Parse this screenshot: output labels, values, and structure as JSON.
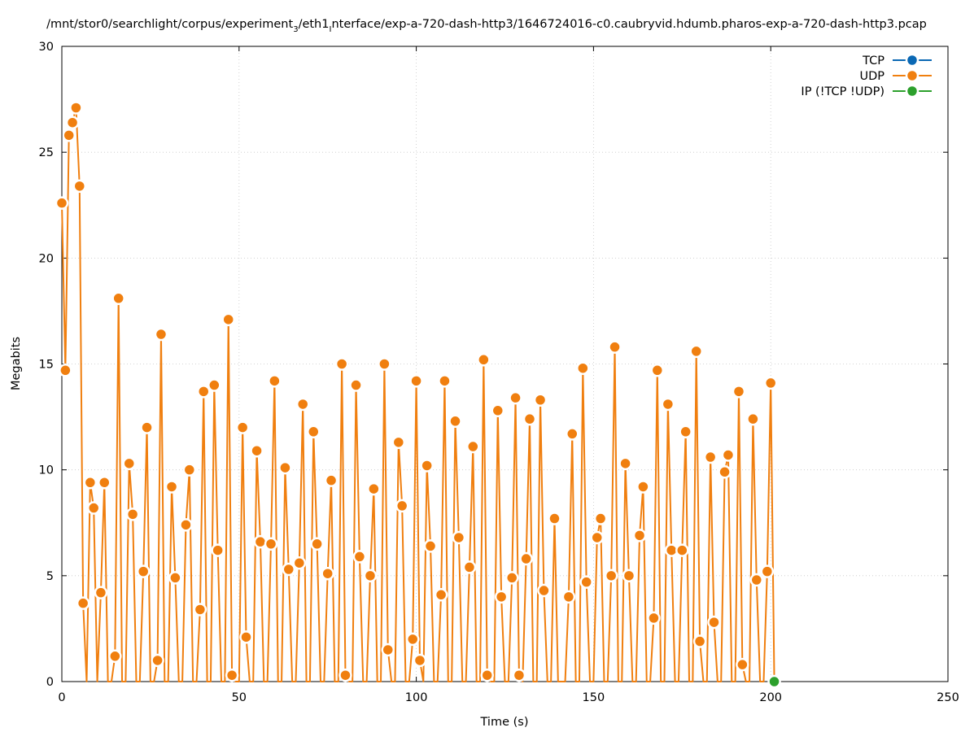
{
  "chart_data": {
    "type": "line",
    "title": "/mnt/stor0/searchlight/corpus/experiment",
    "title_sub": "3",
    "title_mid": "/eth1",
    "title_sub2": "I",
    "title_rest": "nterface/exp-a-720-dash-http3/1646724016-c0.caubryvid.hdumb.pharos-exp-a-720-dash-http3.pcap",
    "xlabel": "Time (s)",
    "ylabel": "Megabits",
    "xlim": [
      0,
      250
    ],
    "ylim": [
      0,
      30
    ],
    "xticks": [
      0,
      50,
      100,
      150,
      200,
      250
    ],
    "yticks": [
      0,
      5,
      10,
      15,
      20,
      25,
      30
    ],
    "grid": true,
    "legend_position": "top-right",
    "series": [
      {
        "name": "TCP",
        "color": "#0a68b4",
        "x": [],
        "y": []
      },
      {
        "name": "UDP",
        "color": "#f07f0f",
        "x": [
          0,
          1,
          2,
          3,
          4,
          5,
          6,
          7,
          8,
          9,
          10,
          11,
          12,
          13,
          14,
          15,
          16,
          17,
          18,
          19,
          20,
          21,
          22,
          23,
          24,
          25,
          26,
          27,
          28,
          29,
          30,
          31,
          32,
          33,
          34,
          35,
          36,
          37,
          38,
          39,
          40,
          41,
          42,
          43,
          44,
          45,
          46,
          47,
          48,
          49,
          50,
          51,
          52,
          53,
          54,
          55,
          56,
          57,
          58,
          59,
          60,
          61,
          62,
          63,
          64,
          65,
          66,
          67,
          68,
          69,
          70,
          71,
          72,
          73,
          74,
          75,
          76,
          77,
          78,
          79,
          80,
          81,
          82,
          83,
          84,
          85,
          86,
          87,
          88,
          89,
          90,
          91,
          92,
          93,
          94,
          95,
          96,
          97,
          98,
          99,
          100,
          101,
          102,
          103,
          104,
          105,
          106,
          107,
          108,
          109,
          110,
          111,
          112,
          113,
          114,
          115,
          116,
          117,
          118,
          119,
          120,
          121,
          122,
          123,
          124,
          125,
          126,
          127,
          128,
          129,
          130,
          131,
          132,
          133,
          134,
          135,
          136,
          137,
          138,
          139,
          140,
          141,
          142,
          143,
          144,
          145,
          146,
          147,
          148,
          149,
          150,
          151,
          152,
          153,
          154,
          155,
          156,
          157,
          158,
          159,
          160,
          161,
          162,
          163,
          164,
          165,
          166,
          167,
          168,
          169,
          170,
          171,
          172,
          173,
          174,
          175,
          176,
          177,
          178,
          179,
          180,
          181,
          182,
          183,
          184,
          185,
          186,
          187,
          188,
          189,
          190,
          191,
          192,
          193,
          194,
          195,
          196,
          197,
          198,
          199,
          200,
          201
        ],
        "y": [
          22.6,
          14.7,
          25.8,
          26.4,
          27.1,
          23.4,
          3.7,
          0.0,
          9.4,
          8.2,
          0.0,
          4.2,
          9.4,
          0.0,
          0.0,
          1.2,
          18.1,
          0.0,
          0.0,
          10.3,
          7.9,
          0.0,
          0.0,
          5.2,
          12.0,
          0.0,
          0.0,
          1.0,
          16.4,
          0.0,
          0.0,
          9.2,
          4.9,
          0.0,
          0.0,
          7.4,
          10.0,
          0.0,
          0.0,
          3.4,
          13.7,
          0.0,
          0.0,
          14.0,
          6.2,
          0.0,
          0.0,
          17.1,
          0.3,
          0.0,
          0.0,
          12.0,
          2.1,
          0.0,
          0.0,
          10.9,
          6.6,
          0.0,
          0.0,
          6.5,
          14.2,
          0.0,
          0.0,
          10.1,
          5.3,
          0.0,
          0.0,
          5.6,
          13.1,
          0.0,
          0.0,
          11.8,
          6.5,
          0.0,
          0.0,
          5.1,
          9.5,
          0.0,
          0.0,
          15.0,
          0.3,
          0.0,
          0.0,
          14.0,
          5.9,
          0.0,
          0.0,
          5.0,
          9.1,
          0.0,
          0.0,
          15.0,
          1.5,
          0.0,
          0.0,
          11.3,
          8.3,
          0.0,
          0.0,
          2.0,
          14.2,
          1.0,
          0.0,
          10.2,
          6.4,
          0.0,
          0.0,
          4.1,
          14.2,
          0.0,
          0.0,
          12.3,
          6.8,
          0.0,
          0.0,
          5.4,
          11.1,
          0.0,
          0.0,
          15.2,
          0.3,
          0.0,
          0.0,
          12.8,
          4.0,
          0.0,
          0.0,
          4.9,
          13.4,
          0.3,
          0.0,
          5.8,
          12.4,
          0.0,
          0.0,
          13.3,
          4.3,
          0.0,
          0.0,
          7.7,
          0.0,
          0.0,
          0.0,
          4.0,
          11.7,
          0.0,
          0.0,
          14.8,
          4.7,
          0.0,
          0.0,
          6.8,
          7.7,
          0.0,
          0.0,
          5.0,
          15.8,
          0.0,
          0.0,
          10.3,
          5.0,
          0.0,
          0.0,
          6.9,
          9.2,
          0.0,
          0.0,
          3.0,
          14.7,
          0.0,
          0.0,
          13.1,
          6.2,
          0.0,
          0.0,
          6.2,
          11.8,
          0.0,
          0.0,
          15.6,
          1.9,
          0.0,
          0.0,
          10.6,
          2.8,
          0.0,
          0.0,
          9.9,
          10.7,
          0.0,
          0.0,
          13.7,
          0.8,
          0.0,
          0.0,
          12.4,
          4.8,
          0.0,
          0.0,
          5.2,
          14.1,
          0.0
        ]
      },
      {
        "name": "IP (!TCP  !UDP)",
        "color": "#2ca02c",
        "x": [
          201
        ],
        "y": [
          0.0
        ]
      }
    ]
  }
}
